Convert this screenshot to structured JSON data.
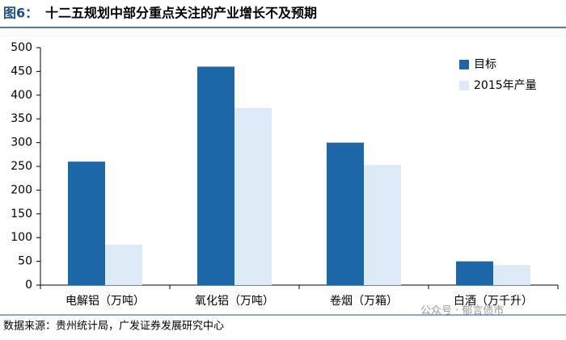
{
  "chart_data": {
    "type": "bar",
    "figure_label": "图6：",
    "title": "十二五规划中部分重点关注的产业增长不及预期",
    "categories": [
      "电解铝（万吨）",
      "氧化铝（万吨）",
      "卷烟（万箱）",
      "白酒（万千升）"
    ],
    "series": [
      {
        "name": "目标",
        "color": "#1b67a7",
        "values": [
          260,
          460,
          300,
          50
        ]
      },
      {
        "name": "2015年产量",
        "color": "#dce9f6",
        "values": [
          85,
          373,
          253,
          42
        ]
      }
    ],
    "ylim": [
      0,
      500
    ],
    "yticks": [
      0,
      50,
      100,
      150,
      200,
      250,
      300,
      350,
      400,
      450,
      500
    ],
    "source": "数据来源：贵州统计局，广发证券发展研究中心",
    "watermark": "公众号 · 郁言债市"
  }
}
